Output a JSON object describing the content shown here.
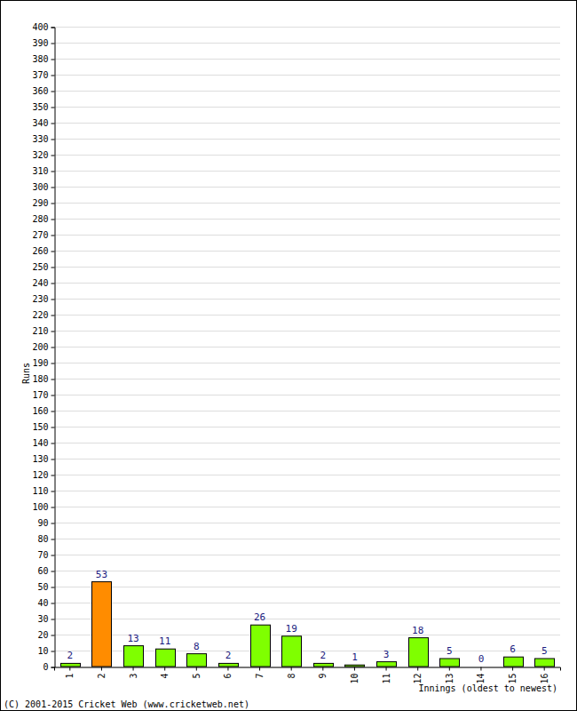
{
  "chart_data": {
    "type": "bar",
    "x_label": "Innings (oldest to newest)",
    "y_label": "Runs",
    "annotations": [
      "(C) 2001-2015 Cricket Web (www.cricketweb.net)"
    ],
    "categories": [
      "1",
      "2",
      "3",
      "4",
      "5",
      "6",
      "7",
      "8",
      "9",
      "10",
      "11",
      "12",
      "13",
      "14",
      "15",
      "16"
    ],
    "values": [
      2,
      53,
      13,
      11,
      8,
      2,
      26,
      19,
      2,
      1,
      3,
      18,
      5,
      0,
      6,
      5
    ],
    "colors": [
      "#7fff00",
      "#ff8c00",
      "#7fff00",
      "#7fff00",
      "#7fff00",
      "#7fff00",
      "#7fff00",
      "#7fff00",
      "#7fff00",
      "#7fff00",
      "#7fff00",
      "#7fff00",
      "#7fff00",
      "#7fff00",
      "#7fff00",
      "#7fff00"
    ],
    "ylim": [
      0,
      400
    ],
    "yticks": [
      0,
      10,
      20,
      30,
      40,
      50,
      60,
      70,
      80,
      90,
      100,
      110,
      120,
      130,
      140,
      150,
      160,
      170,
      180,
      190,
      200,
      210,
      220,
      230,
      240,
      250,
      260,
      270,
      280,
      290,
      300,
      310,
      320,
      330,
      340,
      350,
      360,
      370,
      380,
      390,
      400
    ],
    "grid": true,
    "data_labels": true
  }
}
